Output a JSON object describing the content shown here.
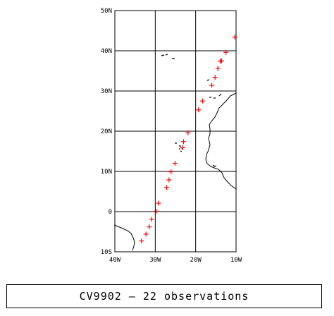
{
  "caption": "CV9902 — 22 observations",
  "chart_data": {
    "type": "scatter",
    "marker": "+",
    "marker_color": "#ff0000",
    "grid": true,
    "xlim": [
      -40,
      -10
    ],
    "ylim": [
      -10,
      50
    ],
    "x_ticks": [
      {
        "value": -40,
        "label": "40W"
      },
      {
        "value": -30,
        "label": "30W"
      },
      {
        "value": -20,
        "label": "20W"
      },
      {
        "value": -10,
        "label": "10W"
      }
    ],
    "y_ticks": [
      {
        "value": 50,
        "label": "50N"
      },
      {
        "value": 40,
        "label": "40N"
      },
      {
        "value": 30,
        "label": "30N"
      },
      {
        "value": 20,
        "label": "20N"
      },
      {
        "value": 10,
        "label": "10N"
      },
      {
        "value": 0,
        "label": "0"
      },
      {
        "value": -10,
        "label": "10S"
      }
    ],
    "points": [
      {
        "lon": -10.3,
        "lat": 43.4
      },
      {
        "lon": -12.5,
        "lat": 39.6
      },
      {
        "lon": -13.6,
        "lat": 37.5
      },
      {
        "lon": -13.9,
        "lat": 37.4
      },
      {
        "lon": -14.5,
        "lat": 35.6
      },
      {
        "lon": -15.2,
        "lat": 33.4
      },
      {
        "lon": -16.0,
        "lat": 31.4
      },
      {
        "lon": -18.3,
        "lat": 27.5
      },
      {
        "lon": -19.3,
        "lat": 25.3
      },
      {
        "lon": -21.9,
        "lat": 19.6
      },
      {
        "lon": -23.0,
        "lat": 17.4
      },
      {
        "lon": -23.2,
        "lat": 15.9
      },
      {
        "lon": -25.1,
        "lat": 12.0
      },
      {
        "lon": -26.1,
        "lat": 9.9
      },
      {
        "lon": -26.6,
        "lat": 7.9
      },
      {
        "lon": -27.2,
        "lat": 6.0
      },
      {
        "lon": -29.2,
        "lat": 2.1
      },
      {
        "lon": -29.8,
        "lat": 0.1
      },
      {
        "lon": -30.9,
        "lat": -1.9
      },
      {
        "lon": -31.5,
        "lat": -3.8
      },
      {
        "lon": -32.3,
        "lat": -5.6
      },
      {
        "lon": -33.4,
        "lat": -7.3
      }
    ]
  }
}
